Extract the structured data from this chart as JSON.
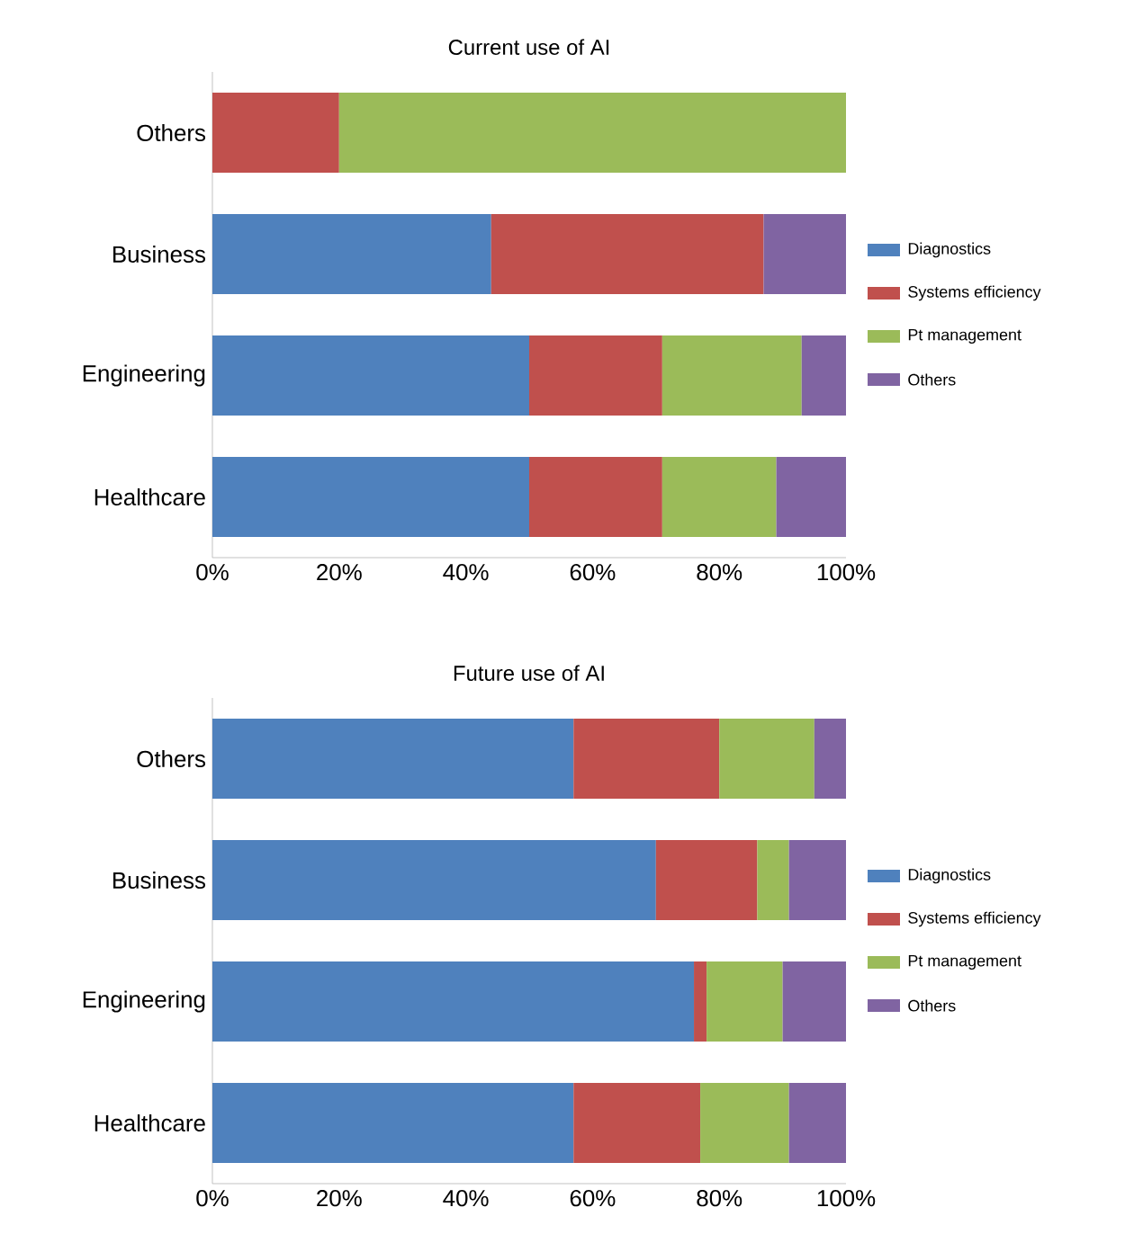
{
  "chart_data": [
    {
      "type": "bar",
      "orientation": "horizontal",
      "stacked": true,
      "title": "Current use of AI",
      "categories": [
        "Others",
        "Business",
        "Engineering",
        "Healthcare"
      ],
      "xlim": [
        0,
        100
      ],
      "xticks": [
        {
          "value": 0,
          "label": "0%"
        },
        {
          "value": 20,
          "label": "20%"
        },
        {
          "value": 40,
          "label": "40%"
        },
        {
          "value": 60,
          "label": "60%"
        },
        {
          "value": 80,
          "label": "80%"
        },
        {
          "value": 100,
          "label": "100%"
        }
      ],
      "legend": "right",
      "series": [
        {
          "name": "Diagnostics",
          "color": "#4f81bd",
          "values": [
            null,
            44,
            50,
            50
          ]
        },
        {
          "name": "Systems efficiency",
          "color": "#c0504d",
          "values": [
            20,
            43,
            21,
            21
          ]
        },
        {
          "name": "Pt management",
          "color": "#9bbb59",
          "values": [
            80,
            null,
            22,
            18
          ]
        },
        {
          "name": "Others",
          "color": "#8064a2",
          "values": [
            null,
            13,
            7,
            11
          ]
        }
      ]
    },
    {
      "type": "bar",
      "orientation": "horizontal",
      "stacked": true,
      "title": "Future use of AI",
      "categories": [
        "Others",
        "Business",
        "Engineering",
        "Healthcare"
      ],
      "xlim": [
        0,
        100
      ],
      "xticks": [
        {
          "value": 0,
          "label": "0%"
        },
        {
          "value": 20,
          "label": "20%"
        },
        {
          "value": 40,
          "label": "40%"
        },
        {
          "value": 60,
          "label": "60%"
        },
        {
          "value": 80,
          "label": "80%"
        },
        {
          "value": 100,
          "label": "100%"
        }
      ],
      "legend": "right",
      "series": [
        {
          "name": "Diagnostics",
          "color": "#4f81bd",
          "values": [
            57,
            70,
            76,
            57
          ]
        },
        {
          "name": "Systems efficiency",
          "color": "#c0504d",
          "values": [
            23,
            16,
            2,
            20
          ]
        },
        {
          "name": "Pt management",
          "color": "#9bbb59",
          "values": [
            15,
            5,
            12,
            14
          ]
        },
        {
          "name": "Others",
          "color": "#8064a2",
          "values": [
            5,
            9,
            10,
            9
          ]
        }
      ]
    }
  ]
}
